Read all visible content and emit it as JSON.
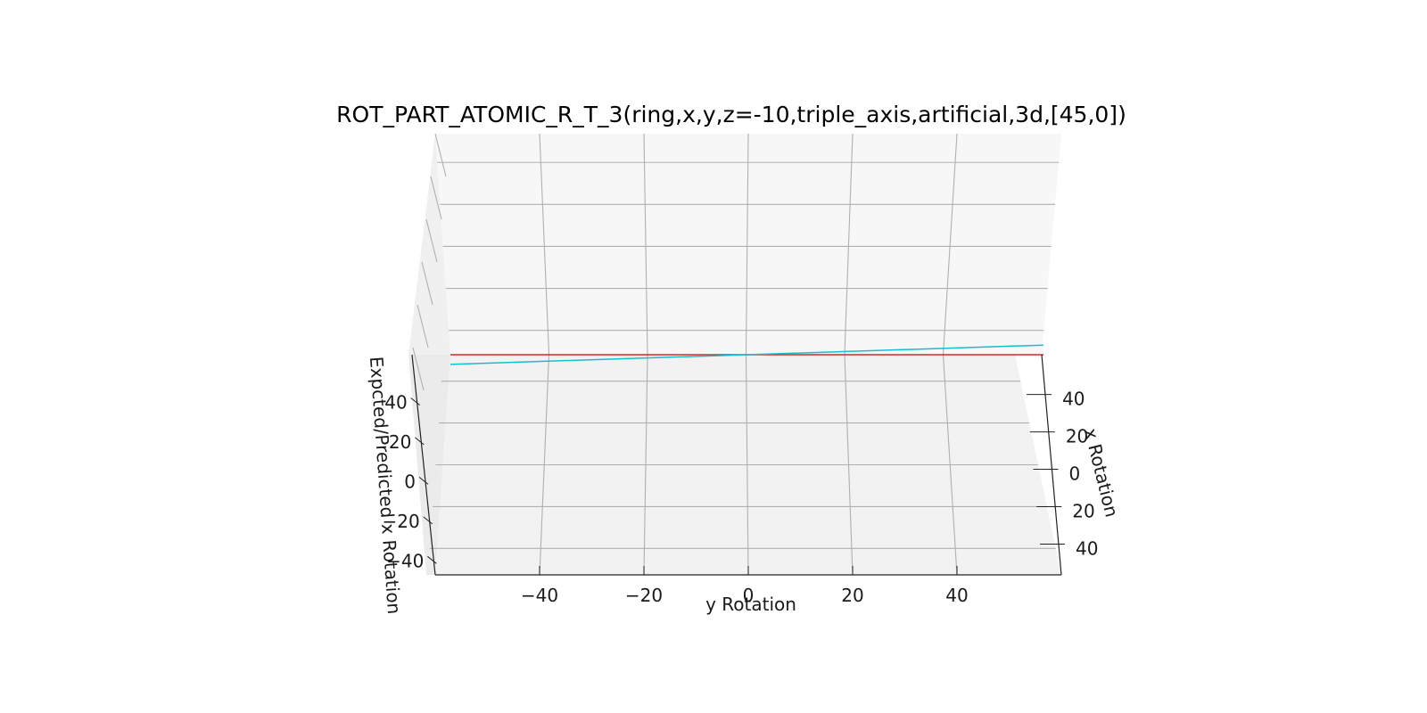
{
  "chart_data": {
    "type": "surface3d",
    "title": "ROT_PART_ATOMIC_R_T_3(ring,x,y,z=-10,triple_axis,artificial,3d,[45,0])",
    "xlabel": "y Rotation",
    "ylabel": "x Rotation",
    "zlabel": "Expcted/Predicted x Rotation",
    "x_ticks": [
      -40,
      -20,
      0,
      20,
      40
    ],
    "y_ticks": [
      -40,
      -20,
      0,
      20,
      40
    ],
    "y_tick_labels": [
      "40",
      "20",
      "0",
      "20",
      "40"
    ],
    "z_ticks": [
      -40,
      -20,
      0,
      20,
      40
    ],
    "z_tick_labels": [
      "−40",
      "−20",
      "0",
      "20",
      "40"
    ],
    "xlim": [
      -60,
      60
    ],
    "ylim": [
      -60,
      60
    ],
    "zlim": [
      -60,
      60
    ],
    "view": {
      "elev": 45,
      "azim": 0
    },
    "grid": true,
    "series": [
      {
        "color": "#d62728",
        "x": [
          -60,
          60
        ],
        "y": [
          0,
          0
        ],
        "z": [
          0,
          0
        ]
      },
      {
        "color": "#17becf",
        "x": [
          -60,
          60
        ],
        "y": [
          0,
          0
        ],
        "z": [
          -3,
          3
        ]
      }
    ]
  }
}
